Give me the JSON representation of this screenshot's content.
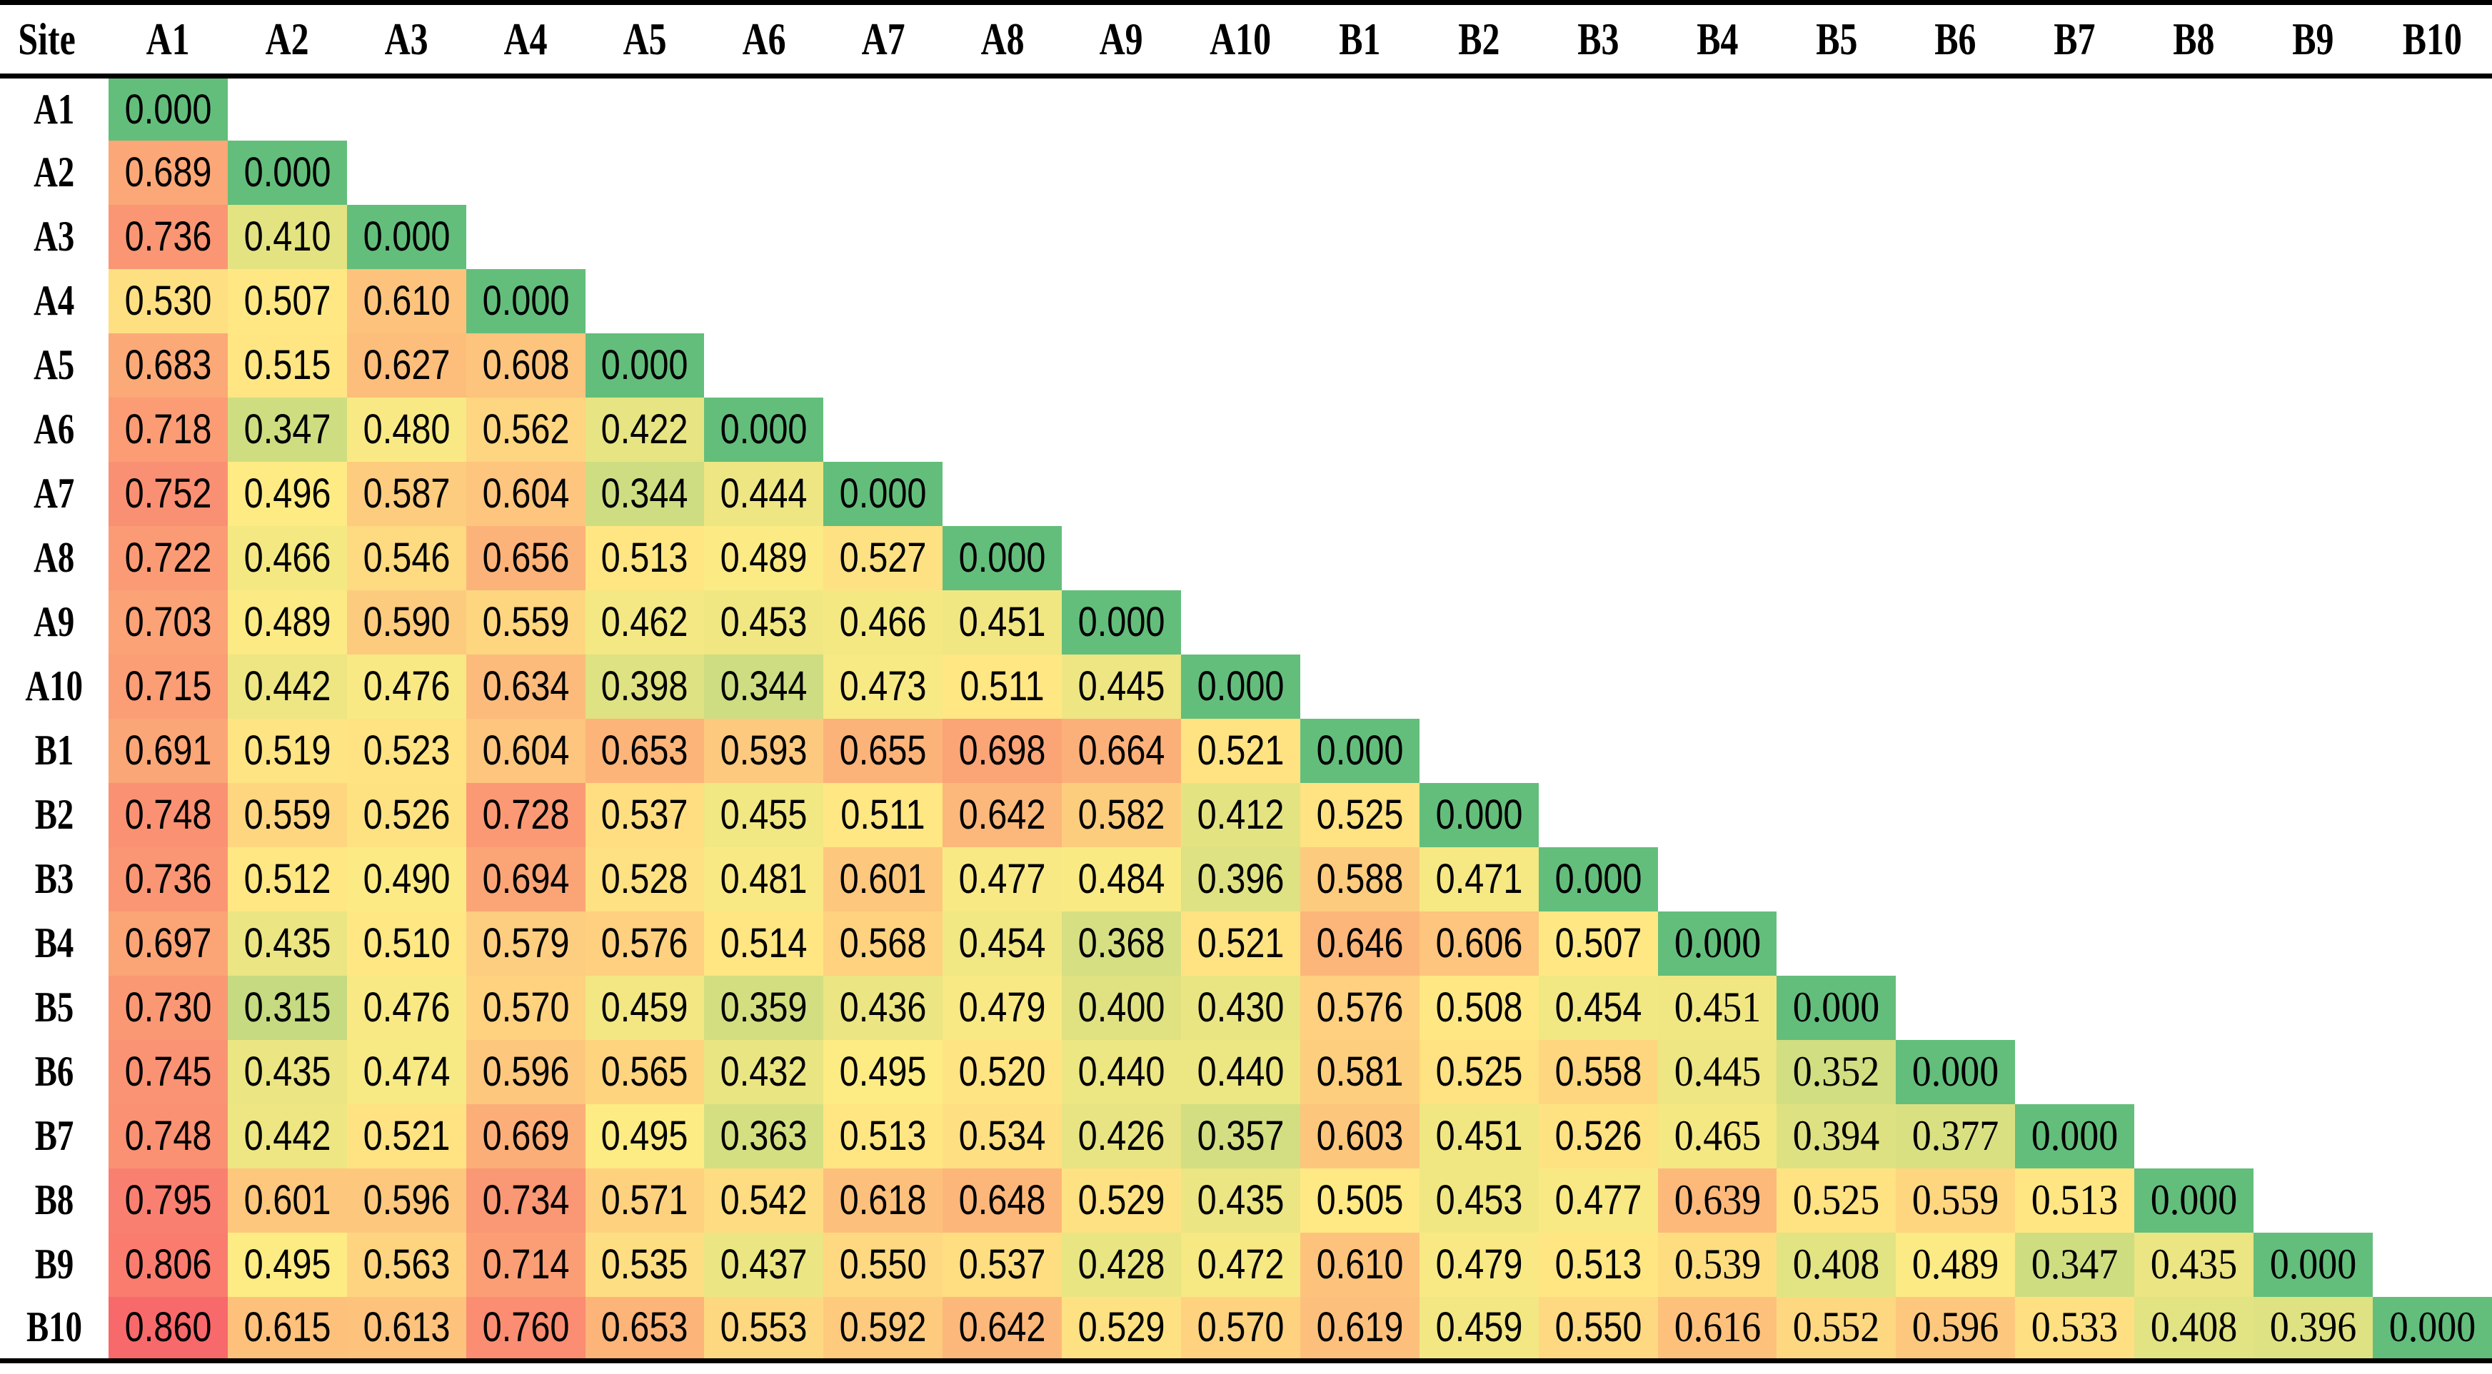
{
  "chart_data": {
    "type": "heatmap",
    "title": "",
    "corner_label": "Site",
    "matrix_shape": "lower-triangular",
    "value_format_decimals": 3,
    "categories": [
      "A1",
      "A2",
      "A3",
      "A4",
      "A5",
      "A6",
      "A7",
      "A8",
      "A9",
      "A10",
      "B1",
      "B2",
      "B3",
      "B4",
      "B5",
      "B6",
      "B7",
      "B8",
      "B9",
      "B10"
    ],
    "serif_from_column": "B4",
    "color_scale": {
      "stops": [
        {
          "value": 0.0,
          "color": "#63BE7B"
        },
        {
          "value": 0.5,
          "color": "#FFEB84"
        },
        {
          "value": 0.86,
          "color": "#F8696B"
        }
      ],
      "empty_color": "#FFFFFF",
      "text_color": "#000000",
      "border_color": "#000000"
    },
    "rows": [
      {
        "label": "A1",
        "values": [
          0.0
        ]
      },
      {
        "label": "A2",
        "values": [
          0.689,
          0.0
        ]
      },
      {
        "label": "A3",
        "values": [
          0.736,
          0.41,
          0.0
        ]
      },
      {
        "label": "A4",
        "values": [
          0.53,
          0.507,
          0.61,
          0.0
        ]
      },
      {
        "label": "A5",
        "values": [
          0.683,
          0.515,
          0.627,
          0.608,
          0.0
        ]
      },
      {
        "label": "A6",
        "values": [
          0.718,
          0.347,
          0.48,
          0.562,
          0.422,
          0.0
        ]
      },
      {
        "label": "A7",
        "values": [
          0.752,
          0.496,
          0.587,
          0.604,
          0.344,
          0.444,
          0.0
        ]
      },
      {
        "label": "A8",
        "values": [
          0.722,
          0.466,
          0.546,
          0.656,
          0.513,
          0.489,
          0.527,
          0.0
        ]
      },
      {
        "label": "A9",
        "values": [
          0.703,
          0.489,
          0.59,
          0.559,
          0.462,
          0.453,
          0.466,
          0.451,
          0.0
        ]
      },
      {
        "label": "A10",
        "values": [
          0.715,
          0.442,
          0.476,
          0.634,
          0.398,
          0.344,
          0.473,
          0.511,
          0.445,
          0.0
        ]
      },
      {
        "label": "B1",
        "values": [
          0.691,
          0.519,
          0.523,
          0.604,
          0.653,
          0.593,
          0.655,
          0.698,
          0.664,
          0.521,
          0.0
        ]
      },
      {
        "label": "B2",
        "values": [
          0.748,
          0.559,
          0.526,
          0.728,
          0.537,
          0.455,
          0.511,
          0.642,
          0.582,
          0.412,
          0.525,
          0.0
        ]
      },
      {
        "label": "B3",
        "values": [
          0.736,
          0.512,
          0.49,
          0.694,
          0.528,
          0.481,
          0.601,
          0.477,
          0.484,
          0.396,
          0.588,
          0.471,
          0.0
        ]
      },
      {
        "label": "B4",
        "values": [
          0.697,
          0.435,
          0.51,
          0.579,
          0.576,
          0.514,
          0.568,
          0.454,
          0.368,
          0.521,
          0.646,
          0.606,
          0.507,
          0.0
        ]
      },
      {
        "label": "B5",
        "values": [
          0.73,
          0.315,
          0.476,
          0.57,
          0.459,
          0.359,
          0.436,
          0.479,
          0.4,
          0.43,
          0.576,
          0.508,
          0.454,
          0.451,
          0.0
        ]
      },
      {
        "label": "B6",
        "values": [
          0.745,
          0.435,
          0.474,
          0.596,
          0.565,
          0.432,
          0.495,
          0.52,
          0.44,
          0.44,
          0.581,
          0.525,
          0.558,
          0.445,
          0.352,
          0.0
        ]
      },
      {
        "label": "B7",
        "values": [
          0.748,
          0.442,
          0.521,
          0.669,
          0.495,
          0.363,
          0.513,
          0.534,
          0.426,
          0.357,
          0.603,
          0.451,
          0.526,
          0.465,
          0.394,
          0.377,
          0.0
        ]
      },
      {
        "label": "B8",
        "values": [
          0.795,
          0.601,
          0.596,
          0.734,
          0.571,
          0.542,
          0.618,
          0.648,
          0.529,
          0.435,
          0.505,
          0.453,
          0.477,
          0.639,
          0.525,
          0.559,
          0.513,
          0.0
        ]
      },
      {
        "label": "B9",
        "values": [
          0.806,
          0.495,
          0.563,
          0.714,
          0.535,
          0.437,
          0.55,
          0.537,
          0.428,
          0.472,
          0.61,
          0.479,
          0.513,
          0.539,
          0.408,
          0.489,
          0.347,
          0.435,
          0.0
        ]
      },
      {
        "label": "B10",
        "values": [
          0.86,
          0.615,
          0.613,
          0.76,
          0.653,
          0.553,
          0.592,
          0.642,
          0.529,
          0.57,
          0.619,
          0.459,
          0.55,
          0.616,
          0.552,
          0.596,
          0.533,
          0.408,
          0.396,
          0.0
        ]
      }
    ]
  }
}
